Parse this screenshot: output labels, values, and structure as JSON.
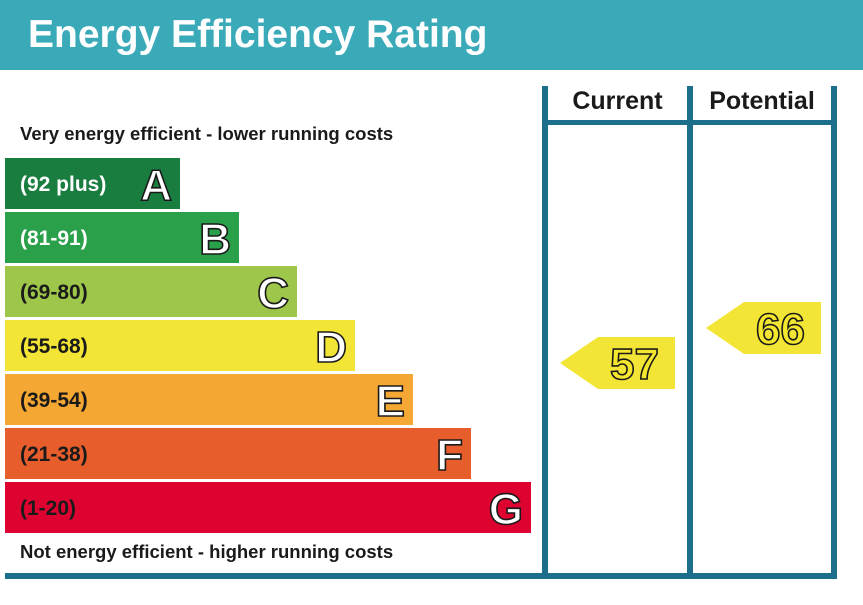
{
  "header": {
    "title": "Energy Efficiency Rating",
    "background_color": "#3aaab9"
  },
  "chart_data": {
    "type": "bar",
    "title": "Energy Efficiency Rating",
    "top_note": "Very energy efficient - lower running costs",
    "bottom_note": "Not energy efficient - higher running costs",
    "bands": [
      {
        "letter": "A",
        "range": "(92 plus)",
        "color": "#1a7d40",
        "text_color": "#ffffff"
      },
      {
        "letter": "B",
        "range": "(81-91)",
        "color": "#2aa04a",
        "text_color": "#ffffff"
      },
      {
        "letter": "C",
        "range": "(69-80)",
        "color": "#9ec64a",
        "text_color": "#1a1a1a"
      },
      {
        "letter": "D",
        "range": "(55-68)",
        "color": "#f3e535",
        "text_color": "#1a1a1a"
      },
      {
        "letter": "E",
        "range": "(39-54)",
        "color": "#f5a733",
        "text_color": "#1a1a1a"
      },
      {
        "letter": "F",
        "range": "(21-38)",
        "color": "#e75e2c",
        "text_color": "#1a1a1a"
      },
      {
        "letter": "G",
        "range": "(1-20)",
        "color": "#de0230",
        "text_color": "#1a1a1a"
      }
    ],
    "columns": [
      "Current",
      "Potential"
    ],
    "ratings": [
      {
        "column": "Current",
        "value": 57,
        "band": "D",
        "color": "#f3e535"
      },
      {
        "column": "Potential",
        "value": 66,
        "band": "D",
        "color": "#f3e535"
      }
    ],
    "frame_color": "#1c6f8a"
  }
}
